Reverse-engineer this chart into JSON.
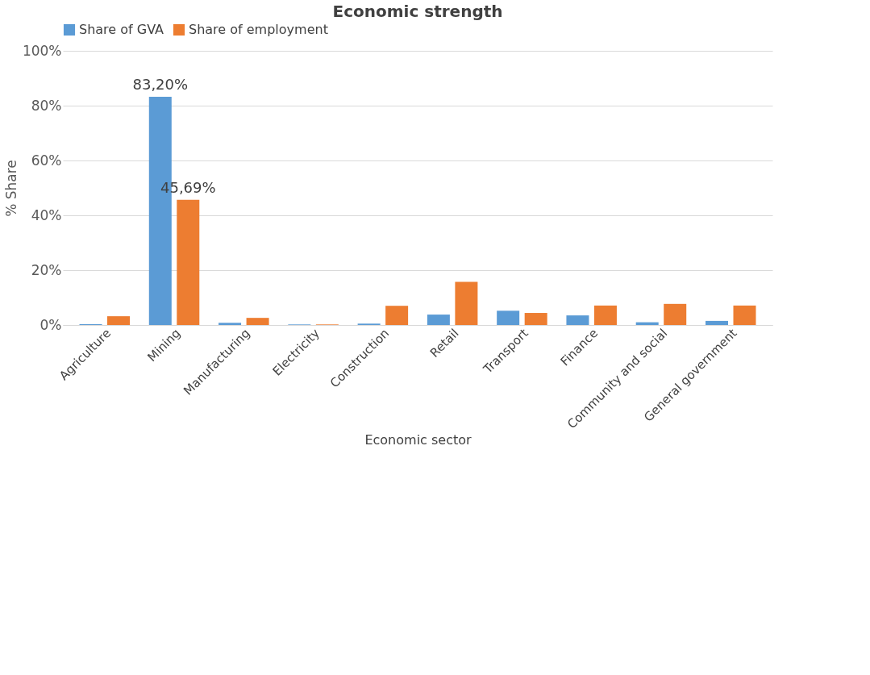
{
  "chart_data": {
    "type": "bar",
    "title": "Economic strength",
    "xlabel": "Economic sector",
    "ylabel": "% Share",
    "categories": [
      "Agriculture",
      "Mining",
      "Manufacturing",
      "Electricity",
      "Construction",
      "Retail",
      "Transport",
      "Finance",
      "Community and social",
      "General government"
    ],
    "series": [
      {
        "name": "Share of GVA",
        "color": "#5b9bd5",
        "values": [
          0.3,
          83.2,
          0.8,
          0.2,
          0.5,
          3.8,
          5.2,
          3.5,
          1.0,
          1.5
        ],
        "value_labels": [
          null,
          "83,20%",
          null,
          null,
          null,
          null,
          null,
          null,
          null,
          null
        ]
      },
      {
        "name": "Share of employment",
        "color": "#ed7d31",
        "values": [
          3.2,
          45.69,
          2.6,
          0.2,
          7.0,
          15.7,
          4.4,
          7.1,
          7.7,
          7.1
        ],
        "value_labels": [
          null,
          "45,69%",
          null,
          null,
          null,
          null,
          null,
          null,
          null,
          null
        ]
      }
    ],
    "ylim": [
      0,
      100
    ],
    "yticks": [
      {
        "value": 0,
        "label": "0%"
      },
      {
        "value": 20,
        "label": "20%"
      },
      {
        "value": 40,
        "label": "40%"
      },
      {
        "value": 60,
        "label": "60%"
      },
      {
        "value": 80,
        "label": "80%"
      },
      {
        "value": 100,
        "label": "100%"
      }
    ],
    "grid": "y",
    "legend": "top"
  }
}
